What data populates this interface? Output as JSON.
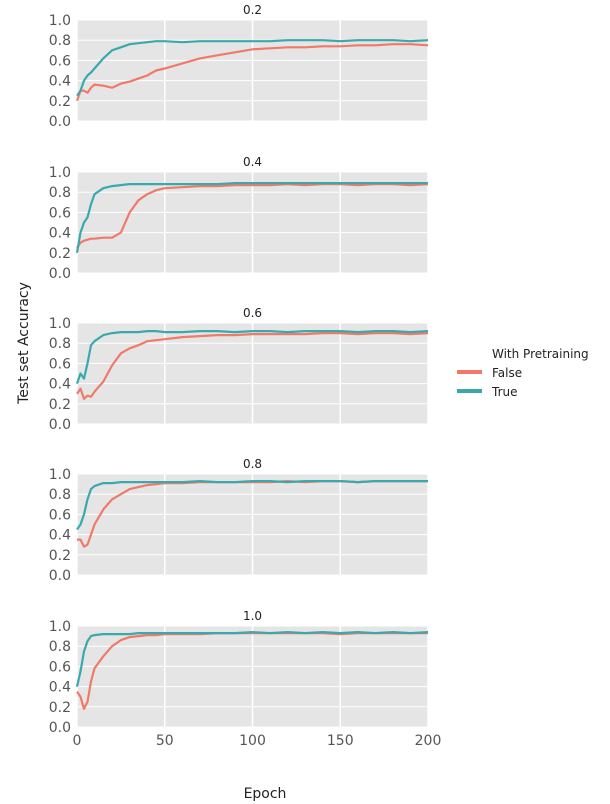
{
  "chart_data": {
    "type": "line",
    "shared": {
      "xlabel": "Epoch",
      "ylabel": "Test set Accuracy",
      "xlim": [
        0,
        200
      ],
      "ylim": [
        0.0,
        1.0
      ],
      "x_ticks": [
        "0",
        "50",
        "100",
        "150",
        "200"
      ],
      "y_ticks": [
        "0.0",
        "0.2",
        "0.4",
        "0.6",
        "0.8",
        "1.0"
      ],
      "grid": true,
      "legend_position": "right",
      "legend": {
        "title": "With Pretraining",
        "entries": [
          {
            "name": "False",
            "color": "#f07a6a"
          },
          {
            "name": "True",
            "color": "#3aa9ad"
          }
        ]
      }
    },
    "panels": [
      {
        "title": "0.2",
        "x": [
          0,
          2,
          4,
          6,
          8,
          10,
          15,
          20,
          25,
          30,
          35,
          40,
          45,
          50,
          60,
          70,
          80,
          90,
          100,
          110,
          120,
          130,
          140,
          150,
          160,
          170,
          180,
          190,
          200
        ],
        "series": [
          {
            "name": "False",
            "values": [
              0.2,
              0.3,
              0.3,
              0.28,
              0.33,
              0.36,
              0.35,
              0.33,
              0.37,
              0.39,
              0.42,
              0.45,
              0.5,
              0.52,
              0.57,
              0.62,
              0.65,
              0.68,
              0.71,
              0.72,
              0.73,
              0.73,
              0.74,
              0.74,
              0.75,
              0.75,
              0.76,
              0.76,
              0.75
            ]
          },
          {
            "name": "True",
            "values": [
              0.25,
              0.3,
              0.4,
              0.45,
              0.48,
              0.52,
              0.62,
              0.7,
              0.73,
              0.76,
              0.77,
              0.78,
              0.79,
              0.79,
              0.78,
              0.79,
              0.79,
              0.79,
              0.79,
              0.79,
              0.8,
              0.8,
              0.8,
              0.79,
              0.8,
              0.8,
              0.8,
              0.79,
              0.8
            ]
          }
        ]
      },
      {
        "title": "0.4",
        "x": [
          0,
          2,
          4,
          6,
          8,
          10,
          15,
          20,
          25,
          30,
          35,
          40,
          45,
          50,
          60,
          70,
          80,
          90,
          100,
          110,
          120,
          130,
          140,
          150,
          160,
          170,
          180,
          190,
          200
        ],
        "series": [
          {
            "name": "False",
            "values": [
              0.25,
              0.3,
              0.32,
              0.33,
              0.34,
              0.34,
              0.35,
              0.35,
              0.4,
              0.6,
              0.72,
              0.78,
              0.82,
              0.84,
              0.85,
              0.86,
              0.86,
              0.87,
              0.87,
              0.87,
              0.88,
              0.87,
              0.88,
              0.88,
              0.87,
              0.88,
              0.88,
              0.87,
              0.88
            ]
          },
          {
            "name": "True",
            "values": [
              0.2,
              0.4,
              0.5,
              0.55,
              0.68,
              0.78,
              0.84,
              0.86,
              0.87,
              0.88,
              0.88,
              0.88,
              0.88,
              0.88,
              0.88,
              0.88,
              0.88,
              0.89,
              0.89,
              0.89,
              0.89,
              0.89,
              0.89,
              0.89,
              0.89,
              0.89,
              0.89,
              0.89,
              0.89
            ]
          }
        ]
      },
      {
        "title": "0.6",
        "x": [
          0,
          2,
          4,
          6,
          8,
          10,
          15,
          20,
          25,
          30,
          35,
          40,
          45,
          50,
          60,
          70,
          80,
          90,
          100,
          110,
          120,
          130,
          140,
          150,
          160,
          170,
          180,
          190,
          200
        ],
        "series": [
          {
            "name": "False",
            "values": [
              0.3,
              0.35,
              0.25,
              0.28,
              0.27,
              0.32,
              0.42,
              0.58,
              0.7,
              0.75,
              0.78,
              0.82,
              0.83,
              0.84,
              0.86,
              0.87,
              0.88,
              0.88,
              0.89,
              0.89,
              0.89,
              0.89,
              0.9,
              0.9,
              0.89,
              0.9,
              0.9,
              0.89,
              0.9
            ]
          },
          {
            "name": "True",
            "values": [
              0.4,
              0.5,
              0.45,
              0.6,
              0.78,
              0.82,
              0.88,
              0.9,
              0.91,
              0.91,
              0.91,
              0.92,
              0.92,
              0.91,
              0.91,
              0.92,
              0.92,
              0.91,
              0.92,
              0.92,
              0.91,
              0.92,
              0.92,
              0.92,
              0.91,
              0.92,
              0.92,
              0.91,
              0.92
            ]
          }
        ]
      },
      {
        "title": "0.8",
        "x": [
          0,
          2,
          4,
          6,
          8,
          10,
          15,
          20,
          25,
          30,
          35,
          40,
          45,
          50,
          60,
          70,
          80,
          90,
          100,
          110,
          120,
          130,
          140,
          150,
          160,
          170,
          180,
          190,
          200
        ],
        "series": [
          {
            "name": "False",
            "values": [
              0.35,
              0.35,
              0.28,
              0.3,
              0.4,
              0.5,
              0.65,
              0.75,
              0.8,
              0.85,
              0.87,
              0.89,
              0.9,
              0.91,
              0.91,
              0.92,
              0.92,
              0.92,
              0.92,
              0.92,
              0.93,
              0.92,
              0.93,
              0.93,
              0.92,
              0.93,
              0.93,
              0.93,
              0.93
            ]
          },
          {
            "name": "True",
            "values": [
              0.45,
              0.5,
              0.6,
              0.75,
              0.85,
              0.88,
              0.91,
              0.91,
              0.92,
              0.92,
              0.92,
              0.92,
              0.92,
              0.92,
              0.92,
              0.93,
              0.92,
              0.92,
              0.93,
              0.93,
              0.92,
              0.93,
              0.93,
              0.93,
              0.92,
              0.93,
              0.93,
              0.93,
              0.93
            ]
          }
        ]
      },
      {
        "title": "1.0",
        "x": [
          0,
          2,
          4,
          6,
          8,
          10,
          15,
          20,
          25,
          30,
          35,
          40,
          45,
          50,
          60,
          70,
          80,
          90,
          100,
          110,
          120,
          130,
          140,
          150,
          160,
          170,
          180,
          190,
          200
        ],
        "series": [
          {
            "name": "False",
            "values": [
              0.35,
              0.3,
              0.18,
              0.25,
              0.45,
              0.58,
              0.7,
              0.8,
              0.86,
              0.89,
              0.9,
              0.91,
              0.91,
              0.92,
              0.92,
              0.92,
              0.93,
              0.93,
              0.93,
              0.93,
              0.93,
              0.93,
              0.93,
              0.92,
              0.93,
              0.93,
              0.93,
              0.93,
              0.93
            ]
          },
          {
            "name": "True",
            "values": [
              0.4,
              0.55,
              0.75,
              0.85,
              0.9,
              0.91,
              0.92,
              0.92,
              0.92,
              0.92,
              0.93,
              0.93,
              0.93,
              0.93,
              0.93,
              0.93,
              0.93,
              0.93,
              0.94,
              0.93,
              0.94,
              0.93,
              0.94,
              0.93,
              0.94,
              0.93,
              0.94,
              0.93,
              0.94
            ]
          }
        ]
      }
    ]
  }
}
